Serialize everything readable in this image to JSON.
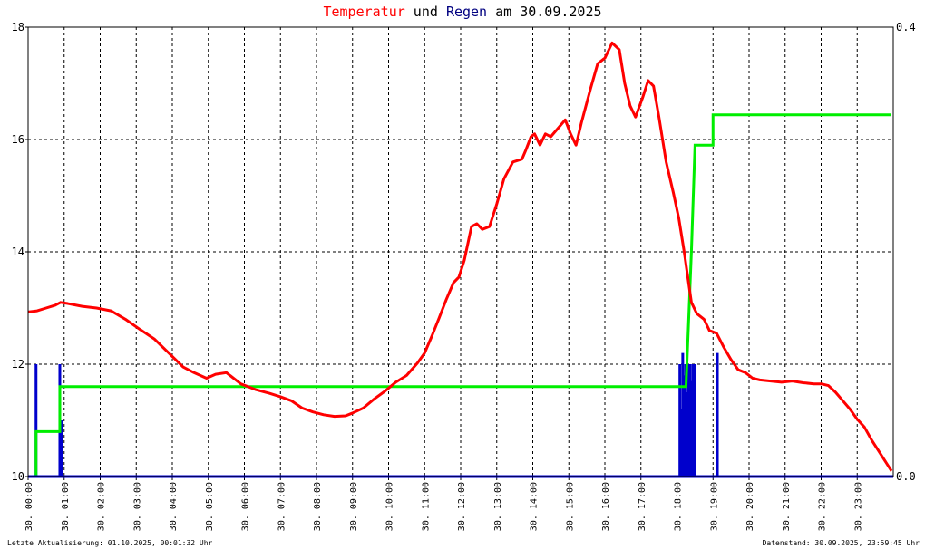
{
  "chart_data": {
    "type": "line",
    "title": {
      "part1": "Temperatur",
      "part2": " und ",
      "part3": "Regen",
      "part4": " am 30.09.2025"
    },
    "colors": {
      "temperature": "#ff0000",
      "rain_bars": "#0000cc",
      "rain_cumulative": "#00ee00",
      "title_dark": "#000080",
      "axis": "#000000",
      "grid": "#000000"
    },
    "x_tick_labels": [
      "30. 00:00",
      "30. 01:00",
      "30. 02:00",
      "30. 03:00",
      "30. 04:00",
      "30. 05:00",
      "30. 06:00",
      "30. 07:00",
      "30. 08:00",
      "30. 09:00",
      "30. 10:00",
      "30. 11:00",
      "30. 12:00",
      "30. 13:00",
      "30. 14:00",
      "30. 15:00",
      "30. 16:00",
      "30. 17:00",
      "30. 18:00",
      "30. 19:00",
      "30. 20:00",
      "30. 21:00",
      "30. 22:00",
      "30. 23:00"
    ],
    "y_left": {
      "ylim": [
        10,
        18
      ],
      "ticks": [
        10,
        12,
        14,
        16,
        18
      ]
    },
    "y_right": {
      "ylim": [
        0,
        0.4
      ],
      "ticks": [
        "0.0",
        "0.4"
      ]
    },
    "xlim_hours": [
      0,
      24
    ],
    "temperature_series": {
      "x": [
        0,
        0.25,
        0.5,
        0.75,
        0.9,
        1.1,
        1.5,
        1.9,
        2.3,
        2.7,
        3.1,
        3.5,
        3.9,
        4.3,
        4.6,
        4.95,
        5.2,
        5.5,
        5.9,
        6.3,
        6.7,
        7.0,
        7.3,
        7.6,
        7.9,
        8.2,
        8.5,
        8.8,
        9.0,
        9.3,
        9.6,
        9.9,
        10.2,
        10.5,
        10.8,
        11.0,
        11.2,
        11.4,
        11.6,
        11.8,
        11.95,
        12.1,
        12.3,
        12.45,
        12.6,
        12.8,
        13.0,
        13.2,
        13.45,
        13.7,
        13.8,
        13.95,
        14.05,
        14.2,
        14.35,
        14.5,
        14.7,
        14.9,
        15.05,
        15.2,
        15.35,
        15.6,
        15.8,
        16.0,
        16.2,
        16.4,
        16.55,
        16.7,
        16.85,
        17.05,
        17.2,
        17.35,
        17.5,
        17.7,
        17.9,
        18.05,
        18.2,
        18.4,
        18.55,
        18.75,
        18.9,
        19.1,
        19.3,
        19.5,
        19.7,
        19.9,
        20.1,
        20.3,
        20.6,
        20.9,
        21.2,
        21.5,
        21.8,
        22.0,
        22.2,
        22.4,
        22.6,
        22.8,
        23.0,
        23.2,
        23.4,
        23.6,
        23.8,
        23.95
      ],
      "y": [
        12.93,
        12.95,
        13.0,
        13.05,
        13.1,
        13.08,
        13.03,
        13.0,
        12.95,
        12.8,
        12.62,
        12.45,
        12.2,
        11.95,
        11.85,
        11.75,
        11.82,
        11.85,
        11.65,
        11.55,
        11.48,
        11.42,
        11.35,
        11.22,
        11.15,
        11.1,
        11.07,
        11.08,
        11.13,
        11.22,
        11.38,
        11.52,
        11.68,
        11.8,
        12.02,
        12.2,
        12.5,
        12.82,
        13.15,
        13.45,
        13.55,
        13.85,
        14.45,
        14.5,
        14.4,
        14.45,
        14.85,
        15.3,
        15.6,
        15.65,
        15.8,
        16.05,
        16.1,
        15.9,
        16.1,
        16.05,
        16.2,
        16.35,
        16.1,
        15.9,
        16.3,
        16.9,
        17.35,
        17.45,
        17.72,
        17.6,
        17.0,
        16.6,
        16.4,
        16.75,
        17.05,
        16.95,
        16.4,
        15.6,
        15.05,
        14.6,
        14.0,
        13.1,
        12.9,
        12.8,
        12.6,
        12.55,
        12.3,
        12.08,
        11.9,
        11.85,
        11.75,
        11.72,
        11.7,
        11.68,
        11.7,
        11.67,
        11.65,
        11.65,
        11.62,
        11.5,
        11.35,
        11.2,
        11.02,
        10.88,
        10.65,
        10.45,
        10.25,
        10.1
      ]
    },
    "rain_cumulative_series": {
      "x": [
        0.22,
        0.22,
        0.88,
        0.88,
        18.08,
        18.08,
        18.25,
        18.4,
        18.5,
        18.55,
        18.55,
        19.0,
        19.0,
        19.15,
        23.95
      ],
      "y": [
        0.0,
        0.04,
        0.04,
        0.08,
        0.08,
        0.08,
        0.08,
        0.2,
        0.295,
        0.295,
        0.295,
        0.295,
        0.322,
        0.322,
        0.322
      ]
    },
    "rain_bars": [
      {
        "x": 0.22,
        "h": 12.0
      },
      {
        "x": 0.88,
        "h": 12.0
      },
      {
        "x": 0.92,
        "h": 11.0
      },
      {
        "x": 18.08,
        "h": 12.0
      },
      {
        "x": 18.12,
        "h": 11.2
      },
      {
        "x": 18.16,
        "h": 12.2
      },
      {
        "x": 18.2,
        "h": 11.8
      },
      {
        "x": 18.24,
        "h": 12.0
      },
      {
        "x": 18.28,
        "h": 11.5
      },
      {
        "x": 18.32,
        "h": 12.0
      },
      {
        "x": 18.36,
        "h": 12.0
      },
      {
        "x": 18.4,
        "h": 11.7
      },
      {
        "x": 18.44,
        "h": 12.0
      },
      {
        "x": 18.48,
        "h": 12.0
      },
      {
        "x": 19.12,
        "h": 12.2
      }
    ],
    "footer_left": "Letzte Aktualisierung: 01.10.2025, 00:01:32 Uhr",
    "footer_right": "Datenstand: 30.09.2025, 23:59:45 Uhr"
  }
}
